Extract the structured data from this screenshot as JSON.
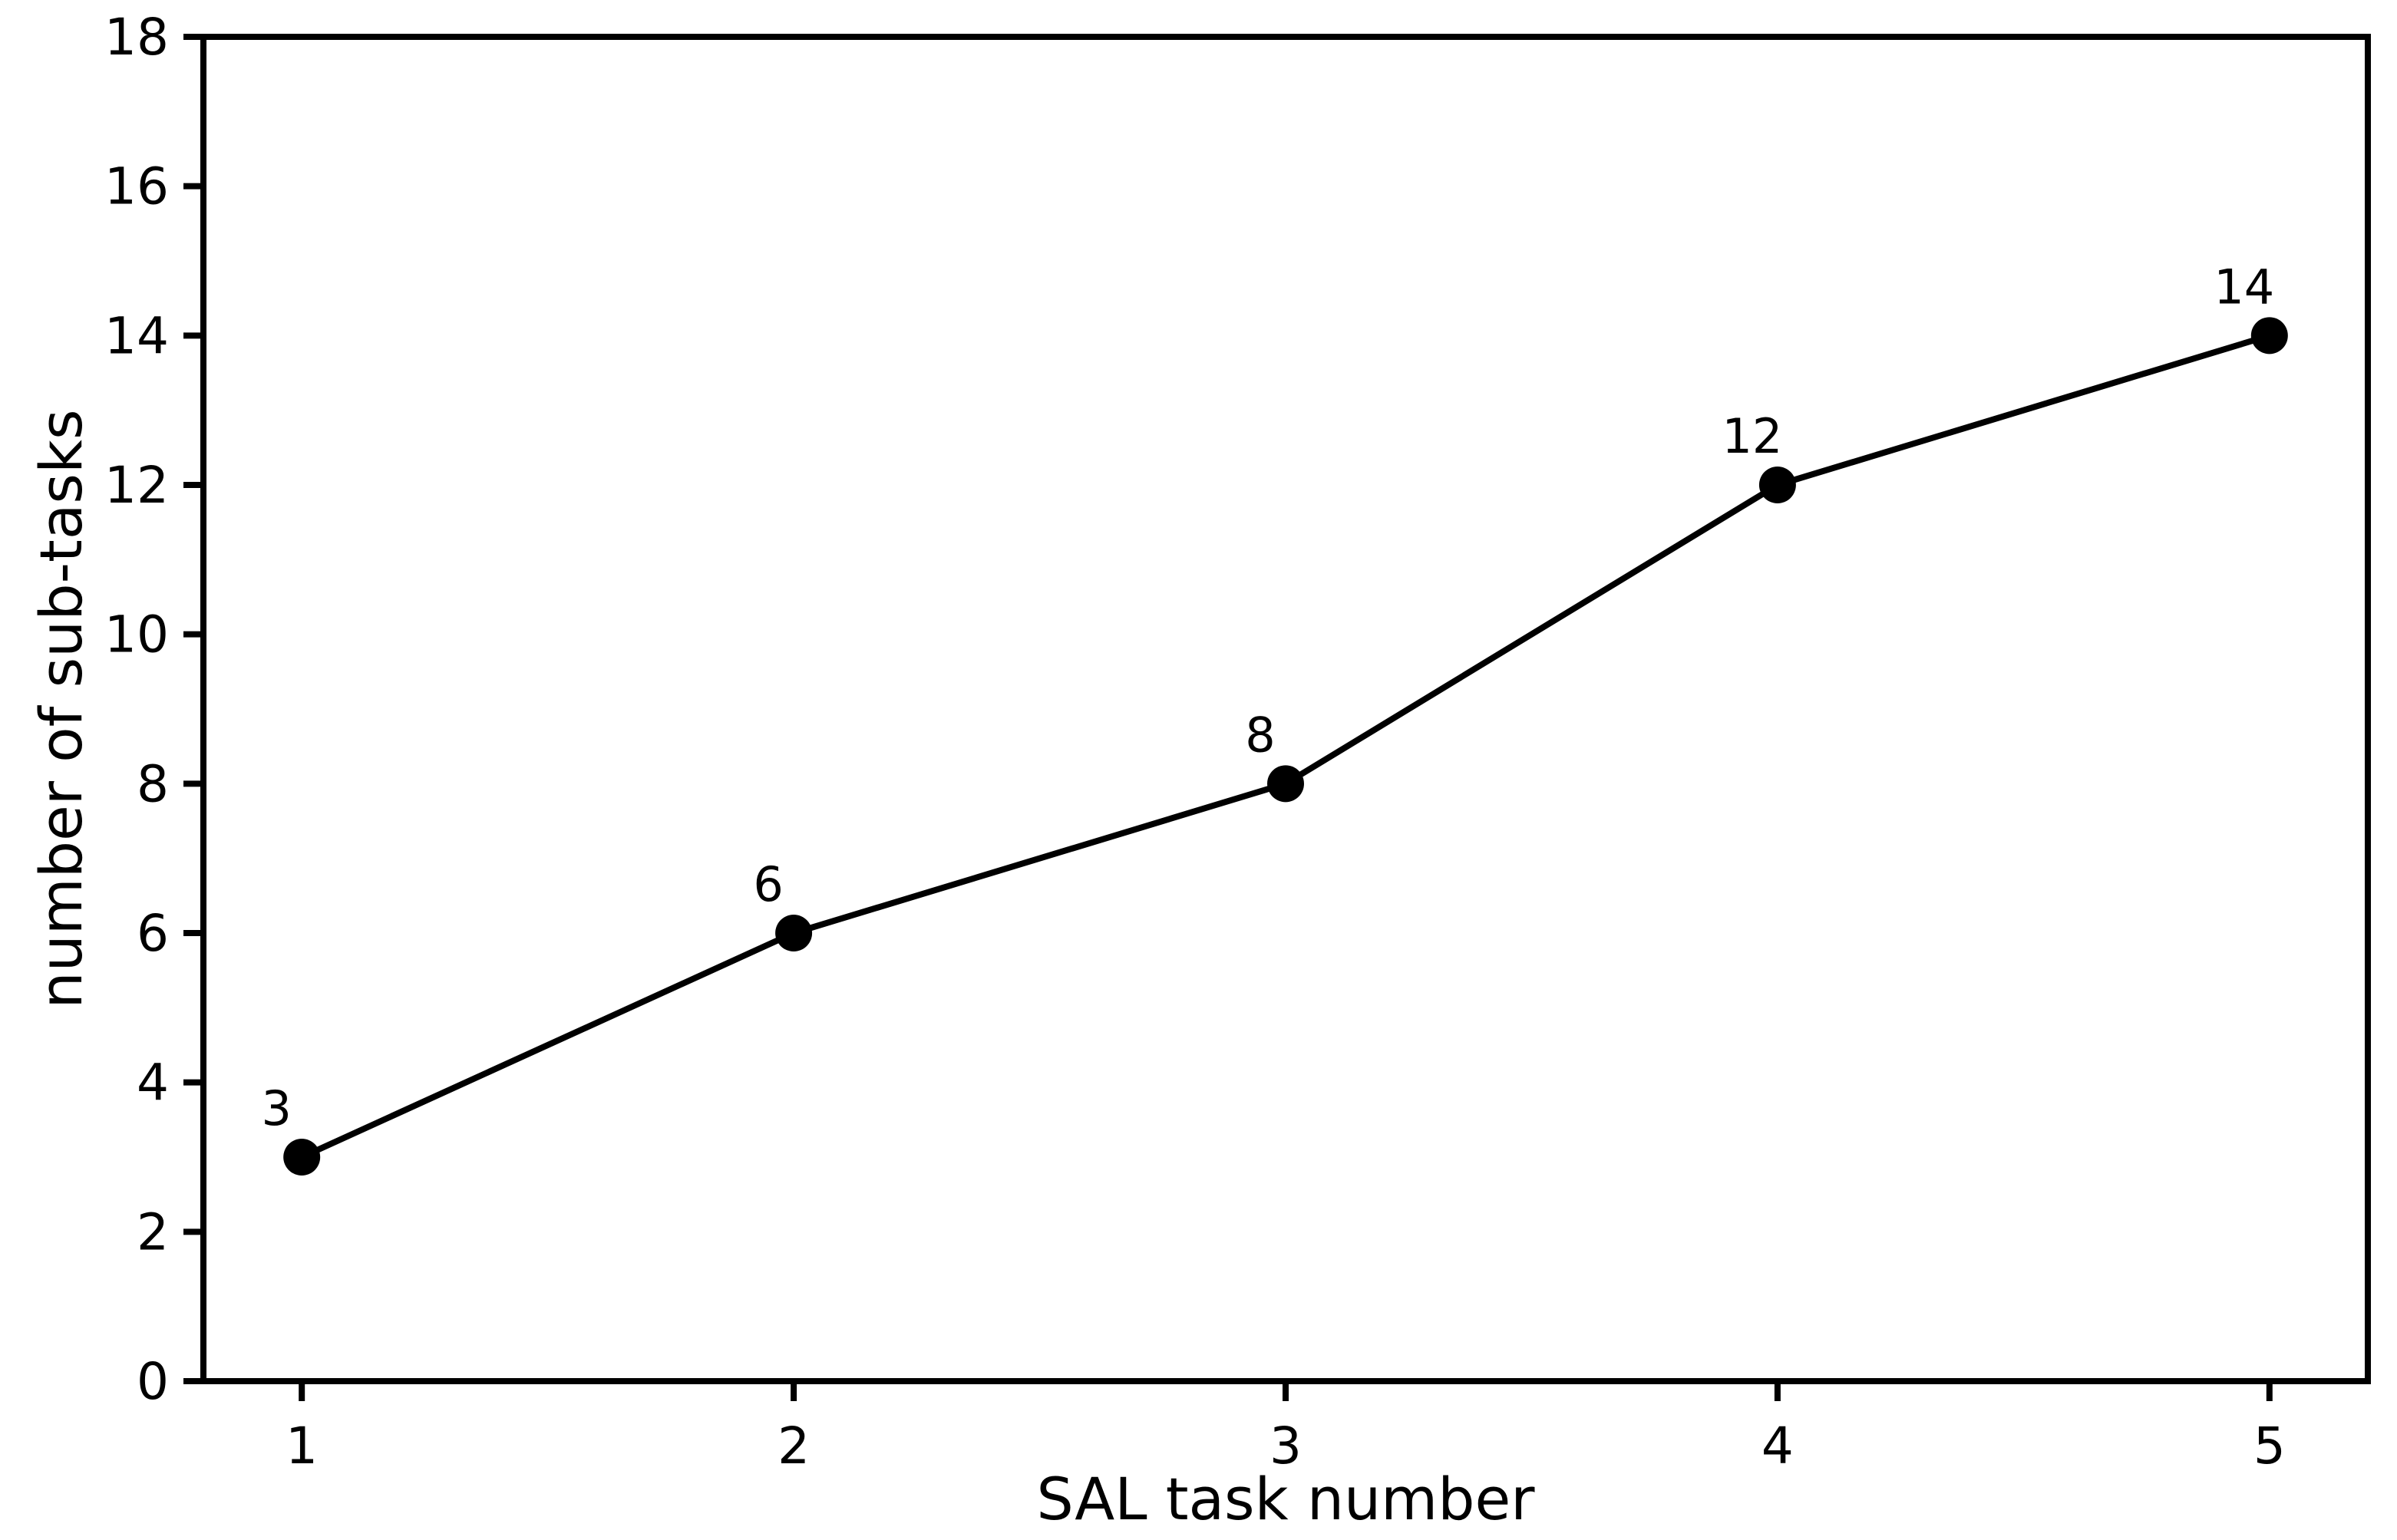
{
  "figure": {
    "background": "#ffffff"
  },
  "chart_data": {
    "type": "line",
    "title": "",
    "xlabel": "SAL task number",
    "ylabel": "number of sub-tasks",
    "x": [
      1,
      2,
      3,
      4,
      5
    ],
    "series": [
      {
        "name": "number of sub-tasks",
        "values": [
          3,
          6,
          8,
          12,
          14
        ],
        "color": "#000000",
        "marker": "circle"
      }
    ],
    "point_labels": [
      "3",
      "6",
      "8",
      "12",
      "14"
    ],
    "xticks": [
      1,
      2,
      3,
      4,
      5
    ],
    "yticks": [
      0,
      2,
      4,
      6,
      8,
      10,
      12,
      14,
      16,
      18
    ],
    "xlim": [
      0.8,
      5.2
    ],
    "ylim": [
      0,
      18
    ],
    "grid": false,
    "legend": "none",
    "axis_color": "#000000",
    "text_color": "#000000"
  }
}
